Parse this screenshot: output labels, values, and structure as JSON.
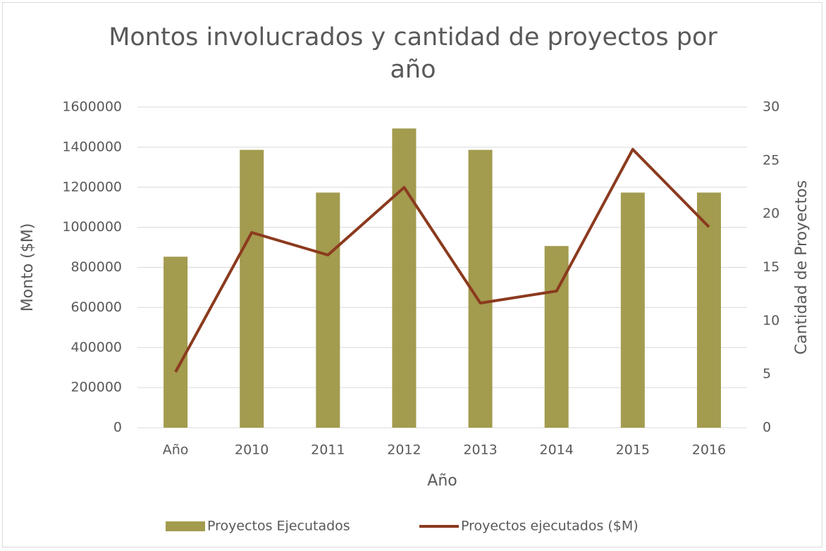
{
  "chart_data": {
    "type": "bar_line",
    "title": "Montos involucrados y cantidad de proyectos por año",
    "xlabel": "Año",
    "ylabel": "Monto ($M)",
    "y2label": "Cantidad de Proyectos",
    "categories": [
      "Año",
      "2010",
      "2011",
      "2012",
      "2013",
      "2014",
      "2015",
      "2016"
    ],
    "series": [
      {
        "name": "Proyectos Ejecutados",
        "type": "bar",
        "axis": "y2",
        "color": "#a39b4e",
        "values": [
          16,
          26,
          22,
          28,
          26,
          17,
          22,
          22
        ]
      },
      {
        "name": "Proyectos ejecutados ($M)",
        "type": "line",
        "axis": "y",
        "color": "#8b3a1e",
        "values": [
          278000,
          974000,
          862000,
          1199000,
          622000,
          682000,
          1389000,
          1002000
        ]
      }
    ],
    "ylim": [
      0,
      1600000
    ],
    "yticks": [
      0,
      200000,
      400000,
      600000,
      800000,
      1000000,
      1200000,
      1400000,
      1600000
    ],
    "y2lim": [
      0,
      30
    ],
    "y2ticks": [
      0,
      5,
      10,
      15,
      20,
      25,
      30
    ],
    "grid": true,
    "legend": "bottom"
  }
}
